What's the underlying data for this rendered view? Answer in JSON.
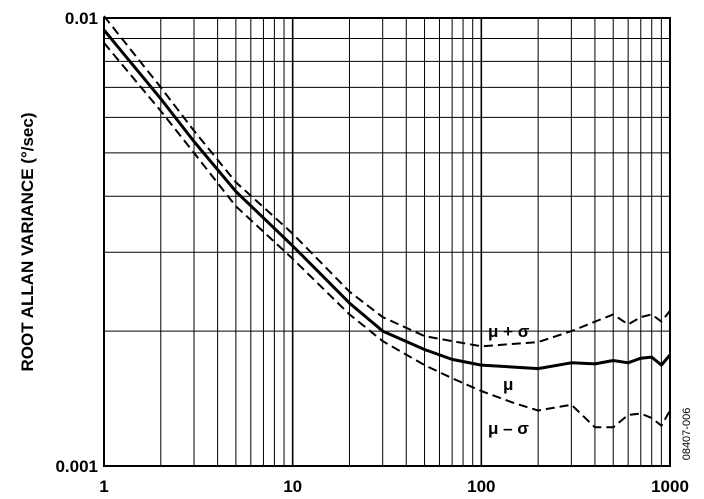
{
  "chart_data": {
    "type": "line",
    "title": "",
    "xlabel": "",
    "ylabel": "ROOT ALLAN VARIANCE (°/sec)",
    "xscale": "log",
    "yscale": "log",
    "xlim": [
      1,
      1000
    ],
    "ylim": [
      0.001,
      0.01
    ],
    "grid": true,
    "x_ticks": [
      "1",
      "10",
      "100",
      "1000"
    ],
    "y_ticks": [
      "0.001",
      "0.01"
    ],
    "series": [
      {
        "name": "μ + σ",
        "style": "dashed",
        "x": [
          1,
          2,
          3,
          5,
          10,
          20,
          30,
          50,
          70,
          100,
          200,
          300,
          500,
          600,
          700,
          800,
          900,
          1000
        ],
        "y": [
          0.0101,
          0.007,
          0.0056,
          0.0043,
          0.0033,
          0.00245,
          0.00215,
          0.00195,
          0.0019,
          0.00185,
          0.00189,
          0.002,
          0.00218,
          0.00207,
          0.00215,
          0.00218,
          0.0021,
          0.00222
        ]
      },
      {
        "name": "μ",
        "style": "solid",
        "x": [
          1,
          2,
          3,
          5,
          10,
          20,
          30,
          50,
          70,
          100,
          200,
          300,
          400,
          500,
          600,
          700,
          800,
          900,
          1000
        ],
        "y": [
          0.0094,
          0.0066,
          0.0053,
          0.0041,
          0.0031,
          0.00231,
          0.002,
          0.00182,
          0.00173,
          0.00168,
          0.00165,
          0.0017,
          0.00169,
          0.00172,
          0.0017,
          0.00174,
          0.00175,
          0.00168,
          0.00177
        ]
      },
      {
        "name": "μ – σ",
        "style": "dashed",
        "x": [
          1,
          2,
          3,
          5,
          10,
          20,
          30,
          50,
          70,
          100,
          150,
          200,
          300,
          400,
          500,
          600,
          700,
          800,
          900,
          1000
        ],
        "y": [
          0.0088,
          0.0062,
          0.005,
          0.0038,
          0.0029,
          0.00218,
          0.0019,
          0.00168,
          0.00157,
          0.00147,
          0.00138,
          0.00133,
          0.00137,
          0.00122,
          0.00122,
          0.0013,
          0.00131,
          0.00128,
          0.00123,
          0.00133
        ]
      }
    ],
    "annotations": [
      "μ + σ",
      "μ",
      "μ – σ"
    ],
    "figure_id": "08407-006"
  }
}
